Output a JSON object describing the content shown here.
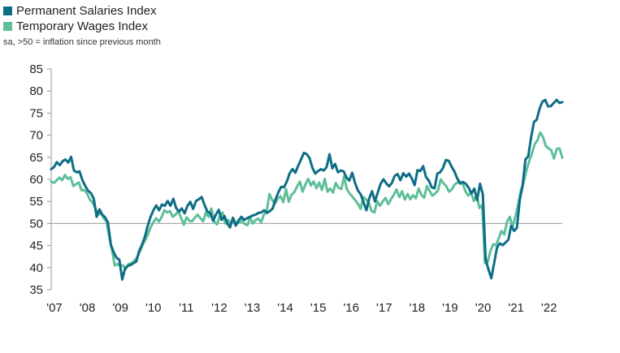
{
  "chart_data": {
    "type": "line",
    "title": "",
    "subtitle": "sa, >50 = inflation since previous month",
    "xlabel": "",
    "ylabel": "",
    "ylim": [
      35,
      85
    ],
    "yticks": [
      "85",
      "80",
      "75",
      "70",
      "65",
      "60",
      "55",
      "50",
      "45",
      "40",
      "35"
    ],
    "xticks": [
      "'07",
      "'08",
      "'09",
      "'10",
      "'11",
      "'12",
      "'13",
      "'14",
      "'15",
      "'16",
      "'17",
      "'18",
      "'19",
      "'20",
      "'21",
      "'22"
    ],
    "x_start": 2007.0,
    "x_end": 2022.5,
    "baseline": 50,
    "legend_position": "top-left",
    "series": [
      {
        "name": "Permanent Salaries Index",
        "color": "#0e6d86",
        "values": [
          62.3,
          62.8,
          63.9,
          63.2,
          64.1,
          64.5,
          63.8,
          65.1,
          62.0,
          61.6,
          61.8,
          59.8,
          58.5,
          57.4,
          56.9,
          55.6,
          51.5,
          53.2,
          52.0,
          51.4,
          50.2,
          45.2,
          43.5,
          42.2,
          41.8,
          37.3,
          39.8,
          40.4,
          40.6,
          41.0,
          41.4,
          43.8,
          45.2,
          47.0,
          49.5,
          51.5,
          53.0,
          54.1,
          53.0,
          54.3,
          54.0,
          55.1,
          54.0,
          55.6,
          53.5,
          52.7,
          53.4,
          52.3,
          54.0,
          54.9,
          53.3,
          55.1,
          55.5,
          56.0,
          54.2,
          52.7,
          52.4,
          50.6,
          52.0,
          53.1,
          50.8,
          51.7,
          50.0,
          49.1,
          51.3,
          49.5,
          50.7,
          51.5,
          50.8,
          51.2,
          51.5,
          51.8,
          52.0,
          52.4,
          52.5,
          53.0,
          52.4,
          52.8,
          53.4,
          55.5,
          57.1,
          58.3,
          58.2,
          59.5,
          61.4,
          62.3,
          61.5,
          63.1,
          64.5,
          66.0,
          65.7,
          64.8,
          62.6,
          61.3,
          61.9,
          62.3,
          62.0,
          62.8,
          65.7,
          62.5,
          63.5,
          61.6,
          62.0,
          61.8,
          60.4,
          59.7,
          61.5,
          59.2,
          57.5,
          56.6,
          54.8,
          53.0,
          55.7,
          57.3,
          55.0,
          57.0,
          59.0,
          60.0,
          59.1,
          58.4,
          59.2,
          60.8,
          61.2,
          59.8,
          61.4,
          60.6,
          61.3,
          60.2,
          58.7,
          62.1,
          61.9,
          63.0,
          60.5,
          59.7,
          58.2,
          58.0,
          61.3,
          61.6,
          62.6,
          64.4,
          64.2,
          62.9,
          61.8,
          60.2,
          59.2,
          59.4,
          59.0,
          58.1,
          56.8,
          57.9,
          55.3,
          59.0,
          56.6,
          42.0,
          39.6,
          37.6,
          41.0,
          44.5,
          45.5,
          45.1,
          45.7,
          46.3,
          49.5,
          48.3,
          49.0,
          55.3,
          58.5,
          64.5,
          65.2,
          69.5,
          73.0,
          73.5,
          76.0,
          77.6,
          78.0,
          76.5,
          76.6,
          77.3,
          78.0,
          77.3,
          77.5
        ]
      },
      {
        "name": "Temporary Wages Index",
        "color": "#5ebf98",
        "values": [
          59.5,
          59.2,
          59.8,
          60.4,
          59.8,
          61.0,
          60.1,
          60.5,
          58.5,
          58.9,
          59.3,
          57.5,
          57.6,
          56.8,
          55.4,
          54.7,
          53.5,
          52.0,
          52.3,
          51.2,
          50.5,
          47.0,
          44.0,
          40.5,
          40.8,
          40.4,
          40.5,
          39.7,
          40.8,
          41.0,
          41.5,
          42.2,
          43.5,
          45.0,
          46.2,
          47.5,
          49.2,
          50.3,
          51.2,
          50.4,
          51.5,
          53.0,
          52.5,
          52.8,
          51.5,
          52.0,
          52.8,
          51.3,
          49.7,
          51.4,
          50.6,
          50.5,
          51.3,
          52.0,
          51.2,
          50.5,
          52.5,
          51.5,
          53.4,
          50.4,
          49.8,
          51.6,
          52.5,
          50.0,
          50.8,
          49.9,
          51.1,
          49.8,
          50.2,
          50.7,
          49.9,
          49.6,
          51.3,
          50.0,
          50.8,
          51.1,
          50.3,
          52.0,
          52.8,
          56.7,
          55.3,
          54.5,
          55.6,
          56.2,
          54.8,
          57.8,
          54.9,
          56.5,
          57.1,
          58.4,
          59.5,
          57.2,
          58.8,
          60.1,
          58.6,
          59.5,
          58.0,
          59.3,
          57.6,
          60.1,
          57.2,
          57.9,
          57.0,
          59.2,
          58.1,
          57.8,
          60.6,
          57.8,
          56.8,
          56.1,
          55.3,
          54.5,
          53.3,
          56.0,
          55.4,
          54.6,
          52.8,
          52.5,
          55.1,
          54.0,
          55.0,
          55.8,
          54.4,
          55.5,
          56.5,
          57.7,
          56.0,
          57.3,
          55.4,
          56.7,
          55.5,
          56.4,
          55.7,
          57.9,
          56.5,
          55.8,
          58.5,
          57.3,
          56.3,
          56.8,
          57.5,
          60.0,
          59.1,
          58.5,
          57.2,
          57.7,
          58.8,
          59.3,
          59.0,
          59.0,
          57.2,
          56.3,
          57.0,
          55.1,
          56.5,
          53.5,
          54.2,
          41.0,
          41.3,
          43.8,
          45.3,
          45.1,
          46.7,
          48.3,
          47.5,
          50.4,
          51.5,
          49.2,
          51.5,
          54.3,
          57.5,
          59.3,
          62.0,
          64.1,
          65.8,
          68.0,
          68.8,
          70.6,
          69.6,
          67.6,
          67.0,
          66.6,
          64.7,
          66.9,
          67.0,
          64.9
        ]
      }
    ]
  }
}
